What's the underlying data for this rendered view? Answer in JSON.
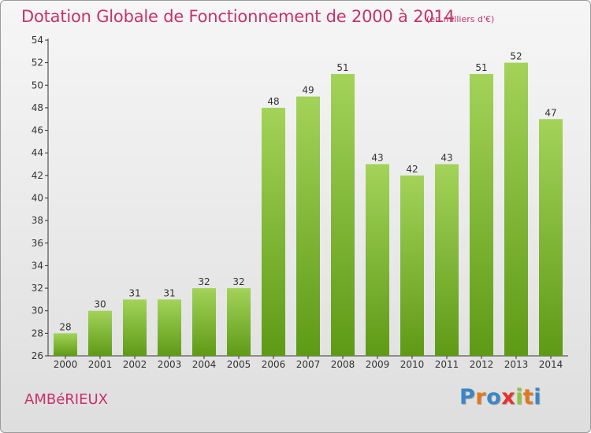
{
  "title": "Dotation Globale de Fonctionnement de 2000 à 2014",
  "unit_note": "(en milliers d'€)",
  "commune": "AMBéRIEUX",
  "logo": {
    "letters": [
      "P",
      "r",
      "o",
      "x",
      "i",
      "t",
      "i"
    ],
    "colors": [
      "#3a86c8",
      "#e07a1f",
      "#3a86c8",
      "#e6322f",
      "#8cc63f",
      "#e07a1f",
      "#3a86c8"
    ]
  },
  "colors": {
    "title": "#c8316a",
    "bar_top": "#a3d359",
    "bar_bottom": "#5e9a16"
  },
  "chart_data": {
    "type": "bar",
    "categories": [
      "2000",
      "2001",
      "2002",
      "2003",
      "2004",
      "2005",
      "2006",
      "2007",
      "2008",
      "2009",
      "2010",
      "2011",
      "2012",
      "2013",
      "2014"
    ],
    "values": [
      28,
      30,
      31,
      31,
      32,
      32,
      48,
      49,
      51,
      43,
      42,
      43,
      51,
      52,
      47
    ],
    "ylim": [
      26,
      54
    ],
    "yticks": [
      26,
      28,
      30,
      32,
      34,
      36,
      38,
      40,
      42,
      44,
      46,
      48,
      50,
      52,
      54
    ],
    "grid": "none"
  }
}
